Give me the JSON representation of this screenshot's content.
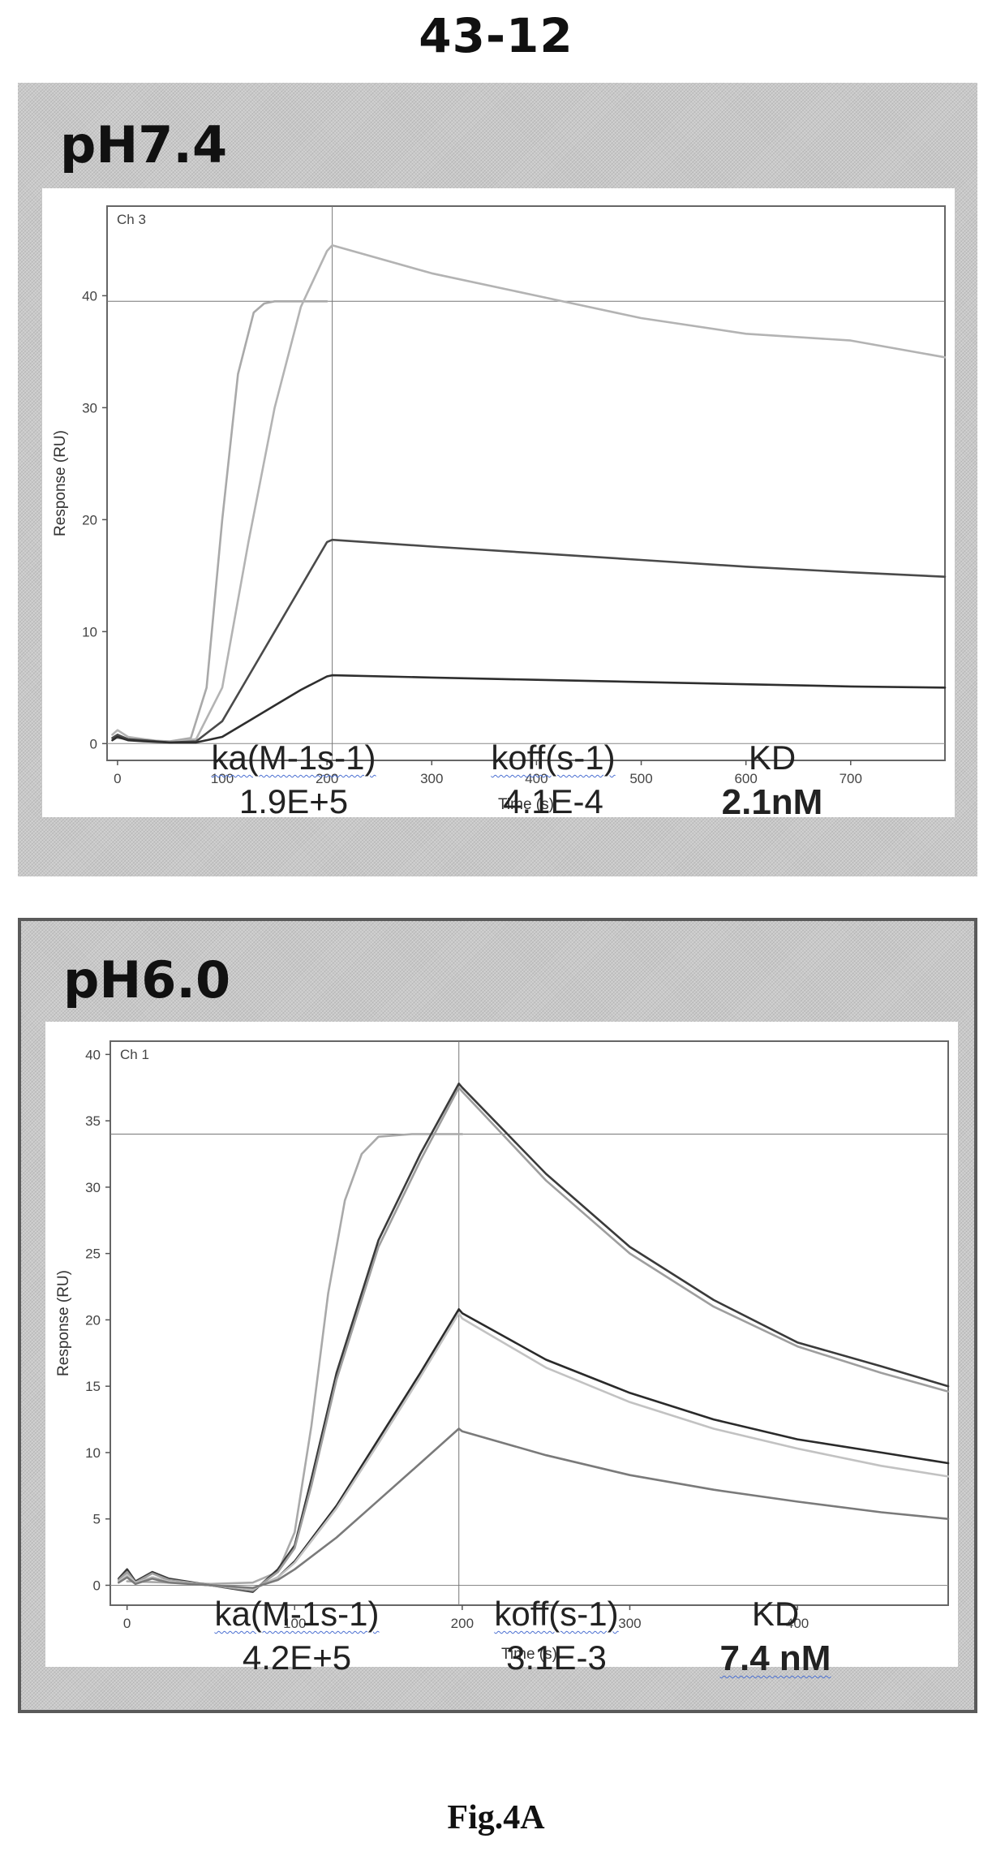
{
  "figure": {
    "title": "43-12",
    "caption": "Fig.4A"
  },
  "panels": [
    {
      "label": "pH7.4",
      "params": {
        "ka_label": "ka(M-1s-1)",
        "koff_label": "koff(s-1)",
        "kd_label": "KD",
        "ka_value": "1.9E+5",
        "koff_value": "4.1E-4",
        "kd_value": "2.1nM"
      }
    },
    {
      "label": "pH6.0",
      "params": {
        "ka_label": "ka(M-1s-1)",
        "koff_label": "koff(s-1)",
        "kd_label": "KD",
        "ka_value": "4.2E+5",
        "koff_value": "3.1E-3",
        "kd_value": "7.4 nM"
      }
    }
  ],
  "chart_data": [
    {
      "type": "line",
      "channel": "Ch 3",
      "xlabel": "Time (s)",
      "ylabel": "Response (RU)",
      "xlim": [
        -10,
        790
      ],
      "ylim": [
        -1.5,
        48
      ],
      "xticks": [
        0,
        100,
        200,
        300,
        400,
        500,
        600,
        700
      ],
      "yticks": [
        0,
        10,
        20,
        30,
        40
      ],
      "ref_lines": {
        "x": 205,
        "y": 39.5
      },
      "series": [
        {
          "color": "#a9a9a9",
          "x": [
            0,
            25,
            50,
            70,
            85,
            100,
            115,
            130,
            140,
            150,
            170,
            200
          ],
          "y": [
            0.5,
            0.3,
            0.2,
            0.5,
            5,
            20,
            33,
            38.5,
            39.3,
            39.5,
            39.5,
            39.5
          ]
        },
        {
          "color": "#b3b3b3",
          "x": [
            -5,
            0,
            10,
            25,
            50,
            75,
            100,
            125,
            150,
            175,
            200,
            205,
            300,
            400,
            500,
            600,
            700,
            790
          ],
          "y": [
            0.8,
            1.2,
            0.6,
            0.4,
            0.1,
            0.4,
            5,
            18,
            30,
            39,
            44,
            44.5,
            42,
            40,
            38,
            36.6,
            36,
            34.5
          ]
        },
        {
          "color": "#4a4a4a",
          "x": [
            -5,
            0,
            10,
            25,
            50,
            75,
            100,
            125,
            150,
            175,
            200,
            205,
            300,
            400,
            500,
            600,
            700,
            790
          ],
          "y": [
            0.5,
            0.8,
            0.4,
            0.3,
            0.1,
            0.2,
            2,
            6,
            10,
            14,
            18,
            18.2,
            17.6,
            17,
            16.4,
            15.8,
            15.3,
            14.9
          ]
        },
        {
          "color": "#2e2e2e",
          "x": [
            -5,
            0,
            10,
            25,
            50,
            75,
            100,
            125,
            150,
            175,
            200,
            205,
            300,
            400,
            500,
            600,
            700,
            790
          ],
          "y": [
            0.3,
            0.6,
            0.3,
            0.2,
            0.1,
            0.1,
            0.6,
            2,
            3.4,
            4.8,
            6,
            6.1,
            5.9,
            5.7,
            5.5,
            5.3,
            5.1,
            5.0
          ]
        }
      ]
    },
    {
      "type": "line",
      "channel": "Ch 1",
      "xlabel": "Time (s)",
      "ylabel": "Response (RU)",
      "xlim": [
        -10,
        490
      ],
      "ylim": [
        -1.5,
        41
      ],
      "xticks": [
        0,
        100,
        200,
        300,
        400
      ],
      "yticks": [
        0,
        5,
        10,
        15,
        20,
        25,
        30,
        35,
        40
      ],
      "ref_lines": {
        "x": 198,
        "y": 34
      },
      "series": [
        {
          "color": "#a9a9a9",
          "x": [
            0,
            25,
            50,
            75,
            90,
            100,
            110,
            120,
            130,
            140,
            150,
            170,
            200
          ],
          "y": [
            0.3,
            0.2,
            0.1,
            0.2,
            1,
            4,
            12,
            22,
            29,
            32.5,
            33.8,
            34,
            34
          ]
        },
        {
          "color": "#3a3a3a",
          "x": [
            -5,
            0,
            5,
            15,
            25,
            50,
            75,
            90,
            100,
            110,
            125,
            150,
            175,
            198,
            200,
            250,
            300,
            350,
            400,
            450,
            490
          ],
          "y": [
            0.5,
            1.2,
            0.3,
            1.0,
            0.5,
            0.0,
            -0.5,
            1.2,
            3,
            8,
            16,
            26,
            32.5,
            37.8,
            37.5,
            31,
            25.5,
            21.5,
            18.3,
            16.5,
            15
          ]
        },
        {
          "color": "#9e9e9e",
          "x": [
            -5,
            0,
            5,
            15,
            25,
            50,
            75,
            90,
            100,
            110,
            125,
            150,
            175,
            198,
            200,
            250,
            300,
            350,
            400,
            450,
            490
          ],
          "y": [
            0.4,
            1.0,
            0.2,
            0.9,
            0.4,
            0.0,
            -0.4,
            1.0,
            2.8,
            7.5,
            15.5,
            25.5,
            32,
            37.5,
            37.2,
            30.5,
            25,
            21,
            18,
            16,
            14.6
          ]
        },
        {
          "color": "#2a2a2a",
          "x": [
            -5,
            0,
            5,
            15,
            25,
            50,
            75,
            90,
            100,
            125,
            150,
            175,
            198,
            200,
            250,
            300,
            350,
            400,
            450,
            490
          ],
          "y": [
            0.3,
            0.8,
            0.2,
            0.6,
            0.3,
            0.0,
            -0.3,
            0.6,
            1.8,
            6,
            11,
            16,
            20.8,
            20.5,
            17,
            14.5,
            12.5,
            11,
            10,
            9.2
          ]
        },
        {
          "color": "#c2c2c2",
          "x": [
            -5,
            0,
            5,
            15,
            25,
            50,
            75,
            90,
            100,
            125,
            150,
            175,
            198,
            200,
            250,
            300,
            350,
            400,
            450,
            490
          ],
          "y": [
            0.3,
            0.8,
            0.2,
            0.6,
            0.3,
            0.0,
            -0.3,
            0.6,
            1.7,
            5.8,
            10.7,
            15.7,
            20.5,
            20.1,
            16.4,
            13.8,
            11.8,
            10.3,
            9.0,
            8.2
          ]
        },
        {
          "color": "#7a7a7a",
          "x": [
            -5,
            0,
            5,
            15,
            25,
            50,
            75,
            90,
            100,
            125,
            150,
            175,
            198,
            200,
            250,
            300,
            350,
            400,
            450,
            490
          ],
          "y": [
            0.2,
            0.6,
            0.1,
            0.5,
            0.2,
            0.0,
            -0.2,
            0.4,
            1.2,
            3.6,
            6.4,
            9.2,
            11.8,
            11.6,
            9.8,
            8.3,
            7.2,
            6.3,
            5.5,
            5.0
          ]
        }
      ]
    }
  ]
}
